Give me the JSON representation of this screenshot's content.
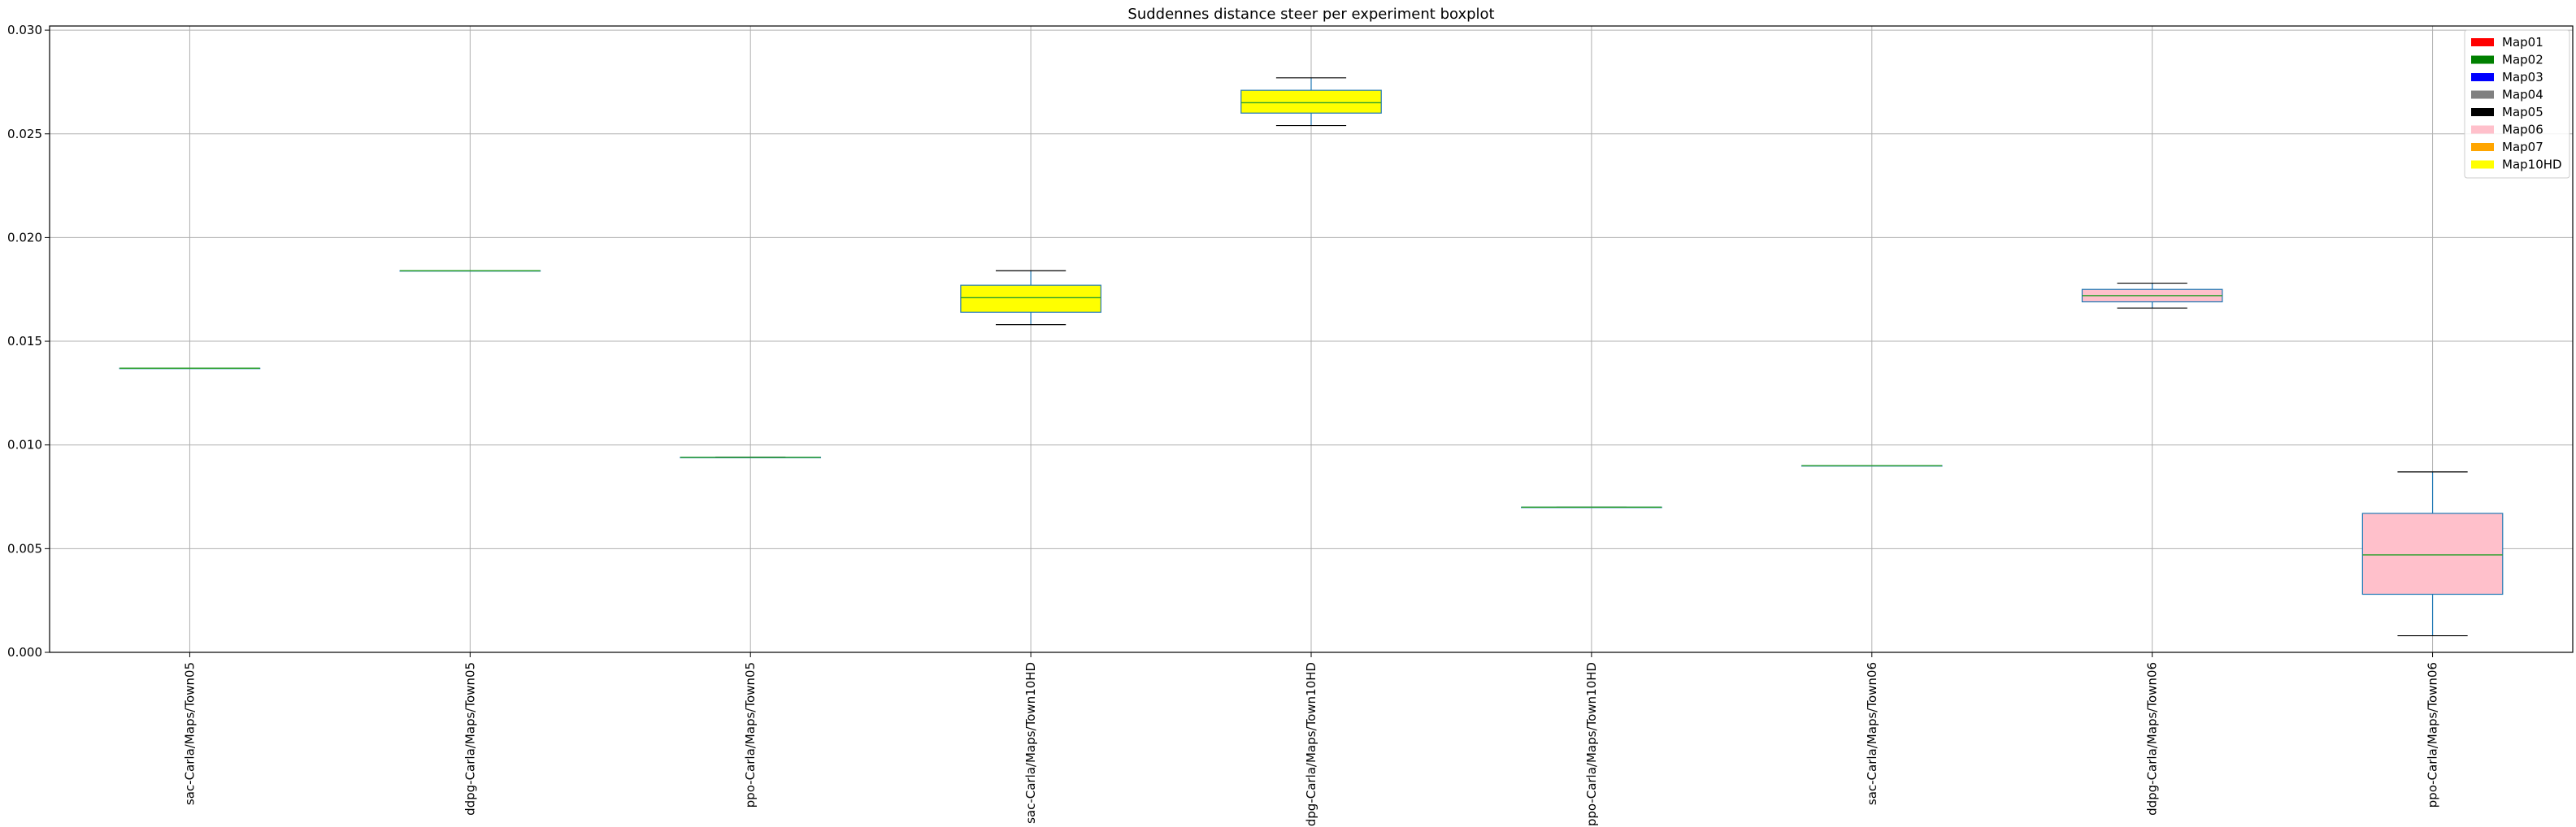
{
  "chart_data": {
    "type": "boxplot",
    "title": "Suddennes distance steer per experiment boxplot",
    "xlabel": "",
    "ylabel": "",
    "ylim": [
      0,
      0.0302
    ],
    "yticks": [
      "0.000",
      "0.005",
      "0.010",
      "0.015",
      "0.020",
      "0.025",
      "0.030"
    ],
    "grid": true,
    "legend_placement": "top-right",
    "legend": [
      {
        "label": "Map01",
        "color": "#ff0000"
      },
      {
        "label": "Map02",
        "color": "#008000"
      },
      {
        "label": "Map03",
        "color": "#0000ff"
      },
      {
        "label": "Map04",
        "color": "#808080"
      },
      {
        "label": "Map05",
        "color": "#000000"
      },
      {
        "label": "Map06",
        "color": "#ffc0cb"
      },
      {
        "label": "Map07",
        "color": "#ffa500"
      },
      {
        "label": "Map10HD",
        "color": "#ffff00"
      }
    ],
    "categories": [
      "sac-Carla/Maps/Town05",
      "ddpg-Carla/Maps/Town05",
      "ppo-Carla/Maps/Town05",
      "sac-Carla/Maps/Town10HD",
      "ddpg-Carla/Maps/Town10HD",
      "ppo-Carla/Maps/Town10HD",
      "sac-Carla/Maps/Town06",
      "ddpg-Carla/Maps/Town06",
      "ppo-Carla/Maps/Town06"
    ],
    "boxes": [
      {
        "min": 0.0137,
        "q1": 0.0137,
        "median": 0.0137,
        "q3": 0.0137,
        "max": 0.0137,
        "fill": "#ffffff"
      },
      {
        "min": 0.0184,
        "q1": 0.0184,
        "median": 0.0184,
        "q3": 0.0184,
        "max": 0.0184,
        "fill": "#ffffff"
      },
      {
        "min": 0.0094,
        "q1": 0.0094,
        "median": 0.0094,
        "q3": 0.0094,
        "max": 0.0094,
        "fill": "#ffffff"
      },
      {
        "min": 0.0158,
        "q1": 0.0164,
        "median": 0.0171,
        "q3": 0.0177,
        "max": 0.0184,
        "fill": "#ffff00"
      },
      {
        "min": 0.0254,
        "q1": 0.026,
        "median": 0.0265,
        "q3": 0.0271,
        "max": 0.0277,
        "fill": "#ffff00"
      },
      {
        "min": 0.007,
        "q1": 0.007,
        "median": 0.007,
        "q3": 0.007,
        "max": 0.007,
        "fill": "#ffffff"
      },
      {
        "min": 0.009,
        "q1": 0.009,
        "median": 0.009,
        "q3": 0.009,
        "max": 0.009,
        "fill": "#ffffff"
      },
      {
        "min": 0.0166,
        "q1": 0.0169,
        "median": 0.0172,
        "q3": 0.0175,
        "max": 0.0178,
        "fill": "#ffc0cb"
      },
      {
        "min": 0.0008,
        "q1": 0.0028,
        "median": 0.0047,
        "q3": 0.0067,
        "max": 0.0087,
        "fill": "#ffc0cb"
      }
    ]
  }
}
